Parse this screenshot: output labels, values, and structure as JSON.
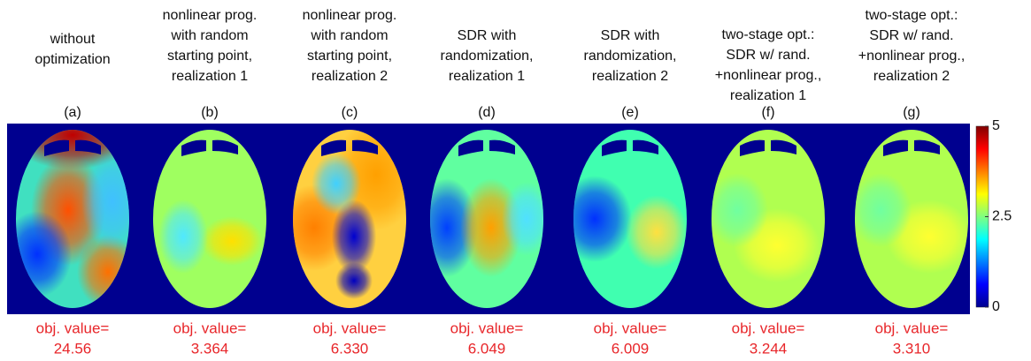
{
  "panels": [
    {
      "title": [
        "without",
        "optimization"
      ],
      "label": "(a)",
      "obj_label": "obj. value=",
      "obj_value": "24.56"
    },
    {
      "title": [
        "nonlinear prog.",
        "with random",
        "starting point,",
        "realization 1"
      ],
      "label": "(b)",
      "obj_label": "obj. value=",
      "obj_value": "3.364"
    },
    {
      "title": [
        "nonlinear prog.",
        "with random",
        "starting point,",
        "realization 2"
      ],
      "label": "(c)",
      "obj_label": "obj. value=",
      "obj_value": "6.330"
    },
    {
      "title": [
        "SDR with",
        "randomization,",
        "realization 1"
      ],
      "label": "(d)",
      "obj_label": "obj. value=",
      "obj_value": "6.049"
    },
    {
      "title": [
        "SDR with",
        "randomization,",
        "realization 2"
      ],
      "label": "(e)",
      "obj_label": "obj. value=",
      "obj_value": "6.009"
    },
    {
      "title": [
        "two-stage opt.:",
        "SDR w/ rand.",
        "+nonlinear prog.,",
        "realization 1"
      ],
      "label": "(f)",
      "obj_label": "obj. value=",
      "obj_value": "3.244"
    },
    {
      "title": [
        "two-stage opt.:",
        "SDR w/ rand.",
        "+nonlinear prog.,",
        "realization 2"
      ],
      "label": "(g)",
      "obj_label": "obj. value=",
      "obj_value": "3.310"
    }
  ],
  "colorbar": {
    "lim": [
      0,
      5
    ],
    "ticks": [
      0,
      2.5,
      5
    ]
  }
}
